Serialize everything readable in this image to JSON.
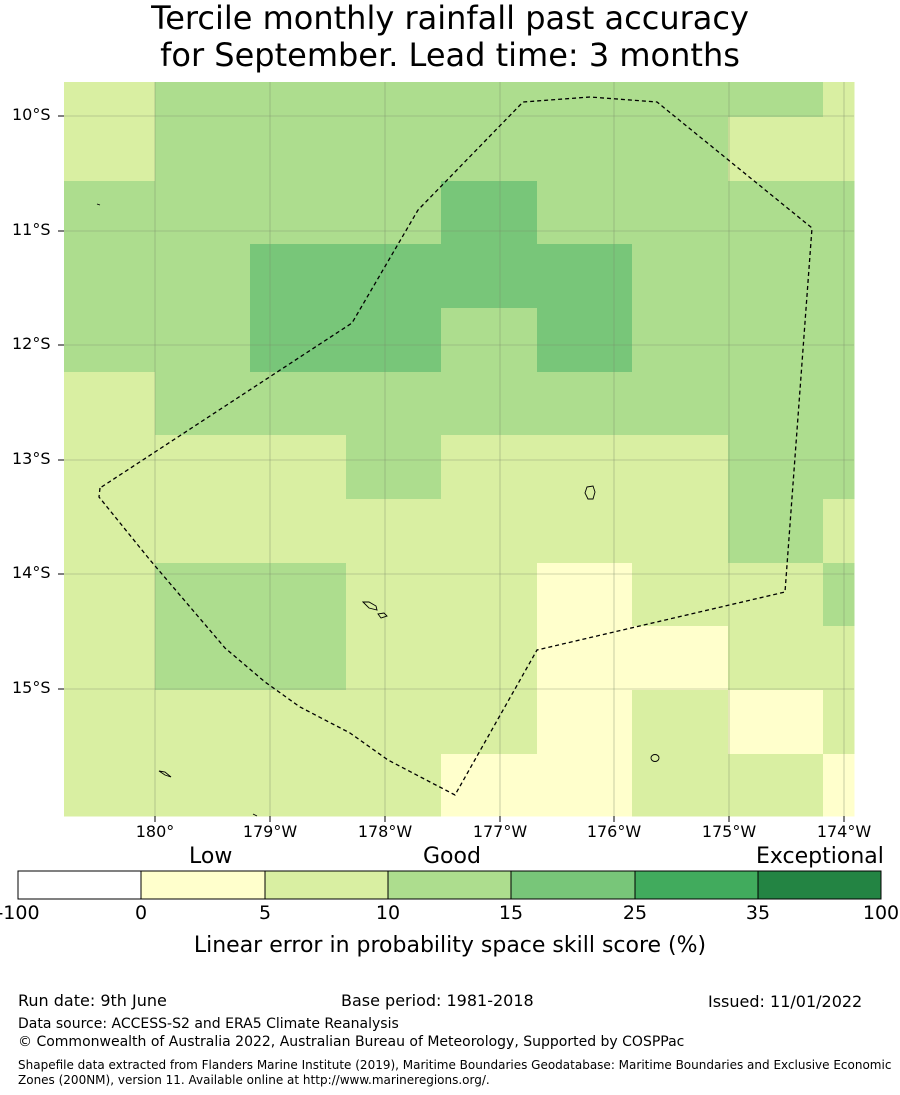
{
  "title": {
    "line1": "Tercile monthly rainfall past accuracy",
    "line2": "for September. Lead time: 3 months"
  },
  "map": {
    "lat_labels": [
      "10°S",
      "11°S",
      "12°S",
      "13°S",
      "14°S",
      "15°S"
    ],
    "lon_labels": [
      "180°",
      "179°W",
      "178°W",
      "177°W",
      "176°W",
      "175°W",
      "174°W"
    ],
    "boundary_style": "dashed EEZ outline",
    "category_colors": {
      "c5_10": "#d9efa2",
      "c10_15": "#addd8e",
      "c15_25": "#78c679",
      "c0_5": "#ffffcc"
    },
    "grid_categories": [
      [
        "c5_10",
        "c10_15",
        "c10_15",
        "c10_15",
        "c10_15",
        "c10_15",
        "c10_15",
        "c10_15",
        "c5_10"
      ],
      [
        "c5_10",
        "c10_15",
        "c10_15",
        "c10_15",
        "c10_15",
        "c10_15",
        "c10_15",
        "c5_10",
        "c5_10"
      ],
      [
        "c10_15",
        "c10_15",
        "c10_15",
        "c10_15",
        "c15_25",
        "c10_15",
        "c10_15",
        "c10_15",
        "c10_15"
      ],
      [
        "c10_15",
        "c10_15",
        "c15_25",
        "c15_25",
        "c15_25",
        "c15_25",
        "c10_15",
        "c10_15",
        "c10_15"
      ],
      [
        "c10_15",
        "c10_15",
        "c15_25",
        "c15_25",
        "c10_15",
        "c15_25",
        "c10_15",
        "c10_15",
        "c10_15"
      ],
      [
        "c5_10",
        "c10_15",
        "c10_15",
        "c10_15",
        "c10_15",
        "c10_15",
        "c10_15",
        "c10_15",
        "c10_15"
      ],
      [
        "c5_10",
        "c5_10",
        "c5_10",
        "c10_15",
        "c5_10",
        "c5_10",
        "c5_10",
        "c10_15",
        "c10_15"
      ],
      [
        "c5_10",
        "c5_10",
        "c5_10",
        "c5_10",
        "c5_10",
        "c5_10",
        "c5_10",
        "c10_15",
        "c5_10"
      ],
      [
        "c5_10",
        "c10_15",
        "c10_15",
        "c5_10",
        "c5_10",
        "c0_5",
        "c5_10",
        "c5_10",
        "c10_15"
      ],
      [
        "c5_10",
        "c10_15",
        "c10_15",
        "c5_10",
        "c5_10",
        "c0_5",
        "c0_5",
        "c5_10",
        "c5_10"
      ],
      [
        "c5_10",
        "c5_10",
        "c5_10",
        "c5_10",
        "c5_10",
        "c0_5",
        "c5_10",
        "c0_5",
        "c5_10"
      ],
      [
        "c5_10",
        "c5_10",
        "c5_10",
        "c5_10",
        "c0_5",
        "c0_5",
        "c5_10",
        "c5_10",
        "c0_5"
      ]
    ]
  },
  "colorbar": {
    "category_words": [
      "Low",
      "Good",
      "Exceptional"
    ],
    "ticks": [
      "-100",
      "0",
      "5",
      "10",
      "15",
      "25",
      "35",
      "100"
    ],
    "colors": [
      "#ffffff",
      "#ffffcc",
      "#d9efa2",
      "#addd8e",
      "#78c679",
      "#41ab5d",
      "#238443"
    ],
    "title": "Linear error in probability space skill score (%)"
  },
  "footer": {
    "run_date": "Run date: 9th June",
    "base_period": "Base period: 1981-2018",
    "issued": "Issued: 11/01/2022",
    "data_source": "Data source: ACCESS-S2 and ERA5 Climate Reanalysis",
    "copyright": "© Commonwealth of Australia 2022, Australian Bureau of Meteorology, Supported by COSPPac",
    "shapefile": "Shapefile data extracted from Flanders Marine Institute (2019), Maritime Boundaries Geodatabase: Maritime Boundaries and Exclusive Economic Zones (200NM), version 11. Available online at http://www.marineregions.org/."
  }
}
